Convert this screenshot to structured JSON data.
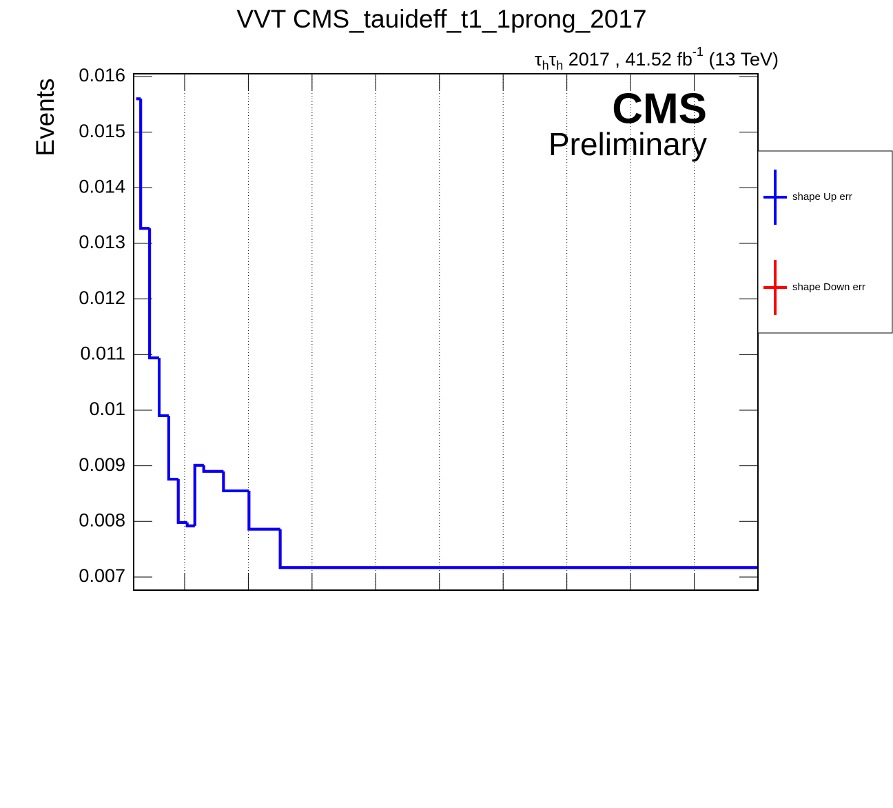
{
  "chart_data": {
    "type": "histogram",
    "title": "VVT CMS_tauideff_t1_1prong_2017",
    "lumi": [
      "τ",
      "h",
      "τ",
      "h",
      " 2017 , 41.52 fb",
      "-1",
      " (13 TeV)"
    ],
    "cms": "CMS",
    "cms_sub": "Preliminary",
    "ylabel": "Events",
    "bins": [
      4,
      11,
      25,
      40,
      55,
      70,
      84,
      96,
      110,
      141,
      181,
      230,
      980
    ],
    "series": [
      {
        "name": "shape Down err",
        "color": "#ff0000",
        "values": [
          0.0156,
          0.01327,
          0.01094,
          0.0099,
          0.00876,
          0.00798,
          0.00792,
          0.00901,
          0.0089,
          0.00855,
          0.00786,
          0.00717
        ]
      },
      {
        "name": "shape Up err",
        "color": "#0000ff",
        "values": [
          0.0156,
          0.01327,
          0.01094,
          0.0099,
          0.00876,
          0.00798,
          0.00792,
          0.00901,
          0.0089,
          0.00855,
          0.00786,
          0.00717
        ]
      }
    ],
    "legend_order": [
      1,
      0
    ],
    "xlim": [
      0,
      980
    ],
    "xticks": [
      80,
      180,
      280,
      380,
      480,
      580,
      680,
      780,
      880
    ],
    "ylim": [
      0.006764,
      0.01605
    ],
    "yticks": [
      0.007,
      0.008,
      0.009,
      0.01,
      0.011,
      0.012,
      0.013,
      0.014,
      0.015,
      0.016
    ],
    "grid": "x"
  }
}
